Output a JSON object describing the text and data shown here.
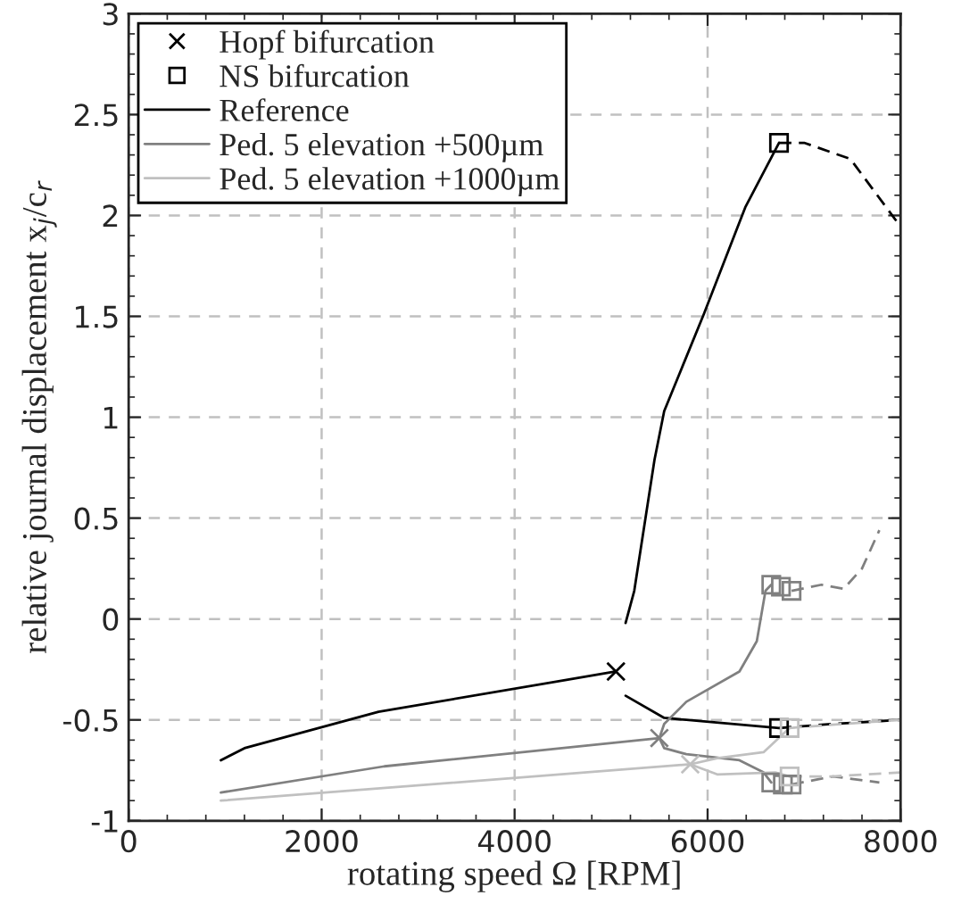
{
  "chart_data": {
    "type": "line",
    "xlabel": "rotating speed Ω [RPM]",
    "ylabel": "relative journal displacement x$_{j}$/c$_{r}$",
    "xlim": [
      0,
      8000
    ],
    "ylim": [
      -1,
      3
    ],
    "xticks": [
      0,
      2000,
      4000,
      6000,
      8000
    ],
    "yticks": [
      -1,
      -0.5,
      0,
      0.5,
      1,
      1.5,
      2,
      2.5,
      3
    ],
    "grid": true,
    "legend": "top left",
    "series": [
      {
        "type": "scatter",
        "name": "Hopf bifurcation",
        "marker": "cross",
        "color": "#000000",
        "x": [
          5050,
          5500,
          5820
        ],
        "values": [
          -0.26,
          -0.59,
          -0.72
        ],
        "colors": [
          "#000000",
          "#808080",
          "#c0c0c0"
        ]
      },
      {
        "type": "scatter",
        "name": "NS bifurcation",
        "marker": "square",
        "color": "#000000",
        "x": [
          6740,
          6740,
          6660,
          6760,
          6870,
          6660,
          6780,
          6870,
          6850,
          6850
        ],
        "values": [
          2.36,
          -0.54,
          0.17,
          0.16,
          0.14,
          -0.81,
          -0.82,
          -0.82,
          -0.54,
          -0.78
        ],
        "colors": [
          "#000000",
          "#000000",
          "#808080",
          "#808080",
          "#808080",
          "#808080",
          "#808080",
          "#808080",
          "#c0c0c0",
          "#c0c0c0"
        ]
      },
      {
        "name": "Reference",
        "color": "#000000",
        "line_style": "solid",
        "x": [
          955,
          1200,
          2590,
          5050
        ],
        "values": [
          -0.7,
          -0.64,
          -0.46,
          -0.26
        ]
      },
      {
        "name": "Ped. 5 elevation +500µm",
        "color": "#808080",
        "line_style": "solid",
        "x": [
          955,
          2650,
          5500
        ],
        "values": [
          -0.86,
          -0.73,
          -0.59
        ]
      },
      {
        "name": "Ped. 5 elevation +1000µm",
        "color": "#c0c0c0",
        "line_style": "solid",
        "x": [
          955,
          5820
        ],
        "values": [
          -0.9,
          -0.72
        ]
      },
      {
        "color": "#000000",
        "line_style": "solid",
        "x": [
          5150,
          5240,
          5450,
          5550,
          5960,
          6390,
          6740
        ],
        "values": [
          -0.02,
          0.14,
          0.79,
          1.03,
          1.51,
          2.04,
          2.36
        ]
      },
      {
        "color": "#000000",
        "line_style": "dashed",
        "x": [
          6740,
          7000,
          7480,
          7960
        ],
        "values": [
          2.36,
          2.36,
          2.28,
          1.97
        ]
      },
      {
        "color": "#000000",
        "line_style": "solid",
        "x": [
          5150,
          5550,
          5780,
          6740
        ],
        "values": [
          -0.38,
          -0.49,
          -0.5,
          -0.54
        ]
      },
      {
        "color": "#000000",
        "line_style": "dashed",
        "x": [
          6740,
          7300,
          8000
        ],
        "values": [
          -0.54,
          -0.52,
          -0.5
        ]
      },
      {
        "color": "#808080",
        "line_style": "solid",
        "x": [
          5500,
          5550,
          5780,
          6330,
          6510,
          6600,
          6660
        ],
        "values": [
          -0.59,
          -0.52,
          -0.41,
          -0.26,
          -0.11,
          0.14,
          0.17
        ]
      },
      {
        "color": "#808080",
        "line_style": "dashed",
        "x": [
          6870,
          7180,
          7410,
          7600,
          7780
        ],
        "values": [
          0.14,
          0.17,
          0.15,
          0.25,
          0.44
        ]
      },
      {
        "color": "#808080",
        "line_style": "solid",
        "x": [
          5500,
          5550,
          5780,
          6330,
          6580,
          6660
        ],
        "values": [
          -0.59,
          -0.64,
          -0.67,
          -0.7,
          -0.76,
          -0.81
        ]
      },
      {
        "color": "#808080",
        "line_style": "dashed",
        "x": [
          6870,
          7300,
          7780
        ],
        "values": [
          -0.82,
          -0.78,
          -0.81
        ]
      },
      {
        "color": "#c0c0c0",
        "line_style": "solid",
        "x": [
          5820,
          6100,
          6580,
          6760,
          6850
        ],
        "values": [
          -0.72,
          -0.69,
          -0.66,
          -0.58,
          -0.54
        ]
      },
      {
        "color": "#c0c0c0",
        "line_style": "dashed",
        "x": [
          6850,
          7400,
          8000
        ],
        "values": [
          -0.54,
          -0.52,
          -0.5
        ]
      },
      {
        "color": "#c0c0c0",
        "line_style": "solid",
        "x": [
          5820,
          6100,
          6700,
          6850
        ],
        "values": [
          -0.72,
          -0.77,
          -0.76,
          -0.78
        ]
      },
      {
        "color": "#c0c0c0",
        "line_style": "dashed",
        "x": [
          6850,
          7300,
          8000
        ],
        "values": [
          -0.78,
          -0.78,
          -0.76
        ]
      }
    ]
  }
}
